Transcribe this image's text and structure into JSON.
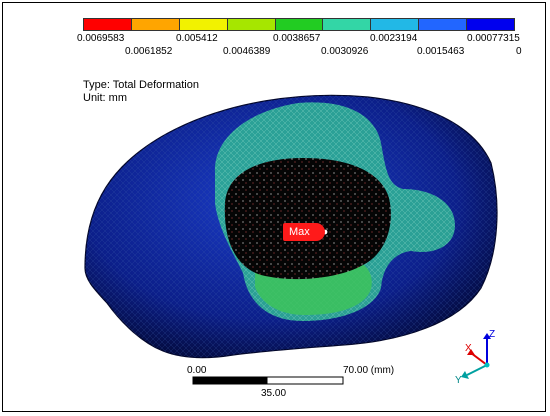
{
  "result": {
    "type_line": "Type: Total Deformation",
    "unit_line": "Unit: mm"
  },
  "legend": {
    "colors": [
      "#ff0000",
      "#ffa500",
      "#f2f200",
      "#a6e600",
      "#22cc22",
      "#33d6a6",
      "#22b8e6",
      "#2266ff",
      "#0000ee"
    ],
    "top_labels": [
      "0.0069583",
      "0.005412",
      "0.0038657",
      "0.0023194",
      "0.00077315"
    ],
    "bottom_labels": [
      "0.0061852",
      "0.0046389",
      "0.0030926",
      "0.0015463",
      "0"
    ]
  },
  "probe": {
    "max_label": "Max"
  },
  "scale_bar": {
    "left_label": "0.00",
    "right_label": "70.00 (mm)",
    "middle_label": "35.00"
  },
  "triad": {
    "x_label": "X",
    "y_label": "Y",
    "z_label": "Z"
  }
}
